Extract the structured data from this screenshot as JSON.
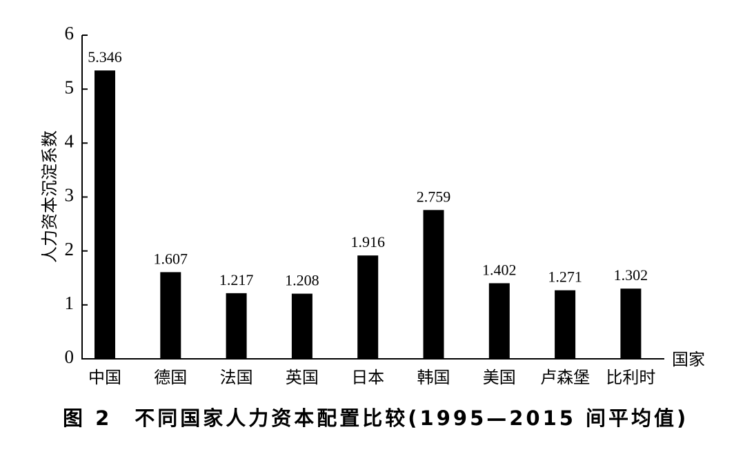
{
  "chart_data": {
    "type": "bar",
    "caption": "图 2　不同国家人力资本配置比较(1995—2015 间平均值)",
    "xlabel": "国家",
    "ylabel": "人力资本沉淀系数",
    "ylim": [
      0,
      6
    ],
    "yticks": [
      "0",
      "1",
      "2",
      "3",
      "4",
      "5",
      "6"
    ],
    "categories": [
      "中国",
      "德国",
      "法国",
      "英国",
      "日本",
      "韩国",
      "美国",
      "卢森堡",
      "比利时"
    ],
    "values": [
      5.346,
      1.607,
      1.217,
      1.208,
      1.916,
      2.759,
      1.402,
      1.271,
      1.302
    ],
    "value_labels": [
      "5.346",
      "1.607",
      "1.217",
      "1.208",
      "1.916",
      "2.759",
      "1.402",
      "1.271",
      "1.302"
    ],
    "bar_color": "#000000",
    "grid": false,
    "legend": "none"
  }
}
